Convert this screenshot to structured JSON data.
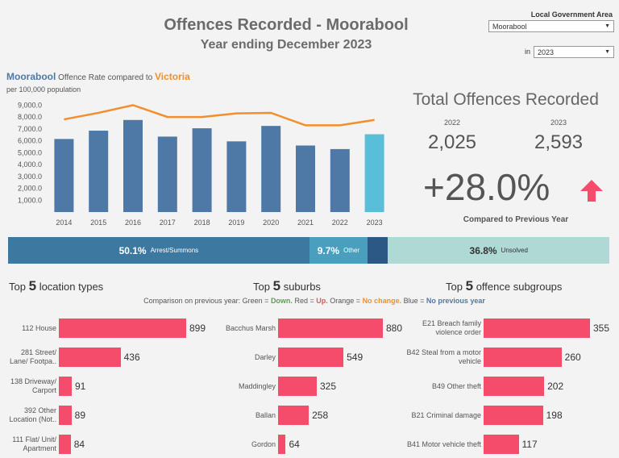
{
  "header": {
    "title": "Offences Recorded - Moorabool",
    "subtitle": "Year ending December 2023"
  },
  "filters": {
    "lga_label": "Local Government Area",
    "lga_value": "Moorabool",
    "in_label": "in",
    "year_value": "2023"
  },
  "rate_chart": {
    "area": "Moorabool",
    "text_mid": "Offence Rate compared to",
    "state": "Victoria",
    "subtitle": "per 100,000 population"
  },
  "chart_data": {
    "type": "bar",
    "categories": [
      "2014",
      "2015",
      "2016",
      "2017",
      "2018",
      "2019",
      "2020",
      "2021",
      "2022",
      "2023"
    ],
    "series": [
      {
        "name": "Moorabool",
        "values": [
          6150,
          6850,
          7750,
          6350,
          7050,
          5950,
          7250,
          5600,
          5300,
          6550
        ]
      },
      {
        "name": "Victoria",
        "values": [
          7800,
          8350,
          9000,
          8000,
          8000,
          8300,
          8350,
          7300,
          7300,
          7750
        ]
      }
    ],
    "yticks": [
      "1,000.0",
      "2,000.0",
      "3,000.0",
      "4,000.0",
      "5,000.0",
      "6,000.0",
      "7,000.0",
      "8,000.0",
      "9,000.0"
    ],
    "ylim": [
      0,
      9500
    ],
    "colors": {
      "bar": "#4e79a7",
      "bar_highlight": "#59bfd9",
      "line": "#f28e2b"
    }
  },
  "totals": {
    "title": "Total Offences Recorded",
    "year_prev": "2022",
    "year_curr": "2023",
    "value_prev": "2,025",
    "value_curr": "2,593",
    "change": "+28.0%",
    "change_label": "Compared to Previous Year",
    "arrow_color": "#f54c6b"
  },
  "outcomes": [
    {
      "pct": "50.1%",
      "label": "Arrest/Summons",
      "share": 50.1,
      "color": "#3c78a0"
    },
    {
      "pct": "9.7%",
      "label": "Other",
      "share": 9.7,
      "color": "#4a9fbe"
    },
    {
      "pct": "",
      "label": "",
      "share": 3.4,
      "color": "#2c5886"
    },
    {
      "pct": "36.8%",
      "label": "Unsolved",
      "share": 36.8,
      "color": "#aed9d4"
    }
  ],
  "panels": {
    "top_word": "Top",
    "n": "5",
    "locations_title": "location types",
    "suburbs_title": "suburbs",
    "subgroups_title": "offence subgroups"
  },
  "legend": {
    "prefix": "Comparison on previous year: Green =",
    "green": "Down.",
    "red_label": "Red =",
    "red": "Up.",
    "orange_label": "Orange =",
    "orange": "No change.",
    "blue_label": "Blue =",
    "blue": "No previous year"
  },
  "locations": [
    {
      "label": "112 House",
      "value": 899
    },
    {
      "label": "281 Street/ Lane/ Footpa..",
      "value": 436
    },
    {
      "label": "138 Driveway/ Carport",
      "value": 91
    },
    {
      "label": "392 Other Location (Not..",
      "value": 89
    },
    {
      "label": "111 Flat/ Unit/ Apartment",
      "value": 84
    }
  ],
  "suburbs": [
    {
      "label": "Bacchus Marsh",
      "value": 880
    },
    {
      "label": "Darley",
      "value": 549
    },
    {
      "label": "Maddingley",
      "value": 325
    },
    {
      "label": "Ballan",
      "value": 258
    },
    {
      "label": "Gordon",
      "value": 64
    }
  ],
  "subgroups": [
    {
      "label": "E21 Breach family violence order",
      "value": 355
    },
    {
      "label": "B42 Steal from a motor vehicle",
      "value": 260
    },
    {
      "label": "B49 Other theft",
      "value": 202
    },
    {
      "label": "B21 Criminal damage",
      "value": 198
    },
    {
      "label": "B41 Motor vehicle theft",
      "value": 117
    }
  ]
}
